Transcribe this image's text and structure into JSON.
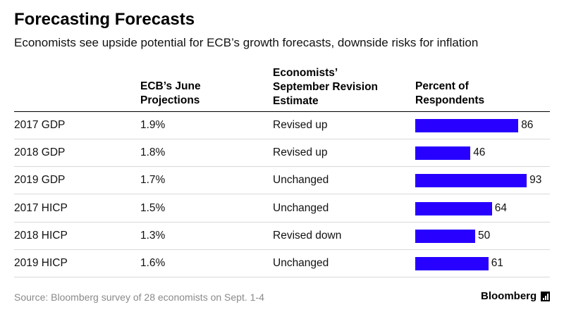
{
  "title": "Forecasting Forecasts",
  "subtitle": "Economists see upside potential for ECB’s growth forecasts, downside risks for inflation",
  "headers": {
    "projections": [
      "ECB’s June",
      "Projections"
    ],
    "revision": [
      "Economists’",
      "September Revision",
      "Estimate"
    ],
    "percent": [
      "Percent of",
      "Respondents"
    ]
  },
  "chart_data": {
    "type": "table",
    "bar_color": "#2700ff",
    "rows": [
      {
        "label": "2017 GDP",
        "projection": "1.9%",
        "revision": "Revised up",
        "percent": 86
      },
      {
        "label": "2018 GDP",
        "projection": "1.8%",
        "revision": "Revised up",
        "percent": 46
      },
      {
        "label": "2019 GDP",
        "projection": "1.7%",
        "revision": "Unchanged",
        "percent": 93
      },
      {
        "label": "2017 HICP",
        "projection": "1.5%",
        "revision": "Unchanged",
        "percent": 64
      },
      {
        "label": "2018 HICP",
        "projection": "1.3%",
        "revision": "Revised down",
        "percent": 50
      },
      {
        "label": "2019 HICP",
        "projection": "1.6%",
        "revision": "Unchanged",
        "percent": 61
      }
    ],
    "percent_range": [
      0,
      100
    ]
  },
  "source": "Source: Bloomberg survey of 28 economists on Sept. 1-4",
  "brand": "Bloomberg",
  "brand_icon": "bar-chart-icon"
}
